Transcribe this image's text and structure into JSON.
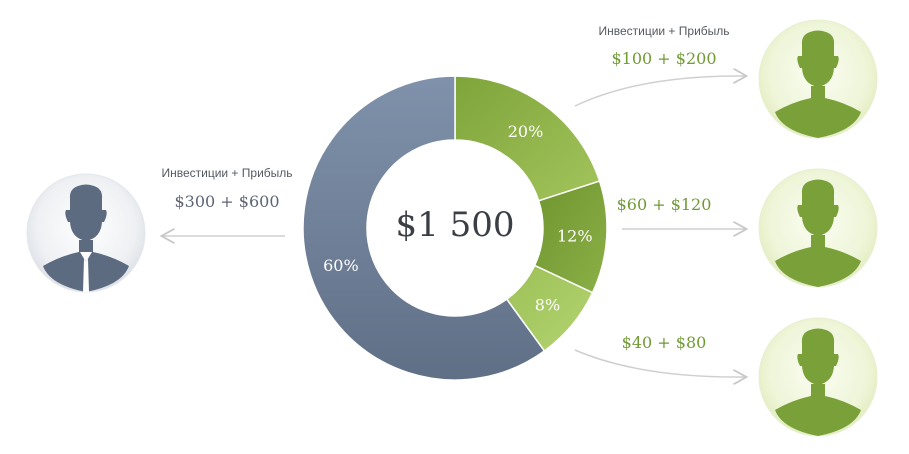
{
  "center_total": "$1 500",
  "left_investor": {
    "caption": "Инвестиции + Прибыль",
    "amount": "$300 + $600",
    "avatar_icon": "person-tie-icon"
  },
  "right_investors": [
    {
      "caption": "Инвестиции + Прибыль",
      "amount": "$100 + $200",
      "avatar_icon": "person-icon"
    },
    {
      "caption": "",
      "amount": "$60 + $120",
      "avatar_icon": "person-icon"
    },
    {
      "caption": "",
      "amount": "$40 + $80",
      "avatar_icon": "person-icon"
    }
  ],
  "chart_data": {
    "type": "pie",
    "categories": [
      "60%",
      "20%",
      "12%",
      "8%"
    ],
    "values": [
      60,
      20,
      12,
      8
    ],
    "colors": [
      "#6f7f96",
      "#8fb04a",
      "#7fa23c",
      "#9dc05a"
    ]
  }
}
